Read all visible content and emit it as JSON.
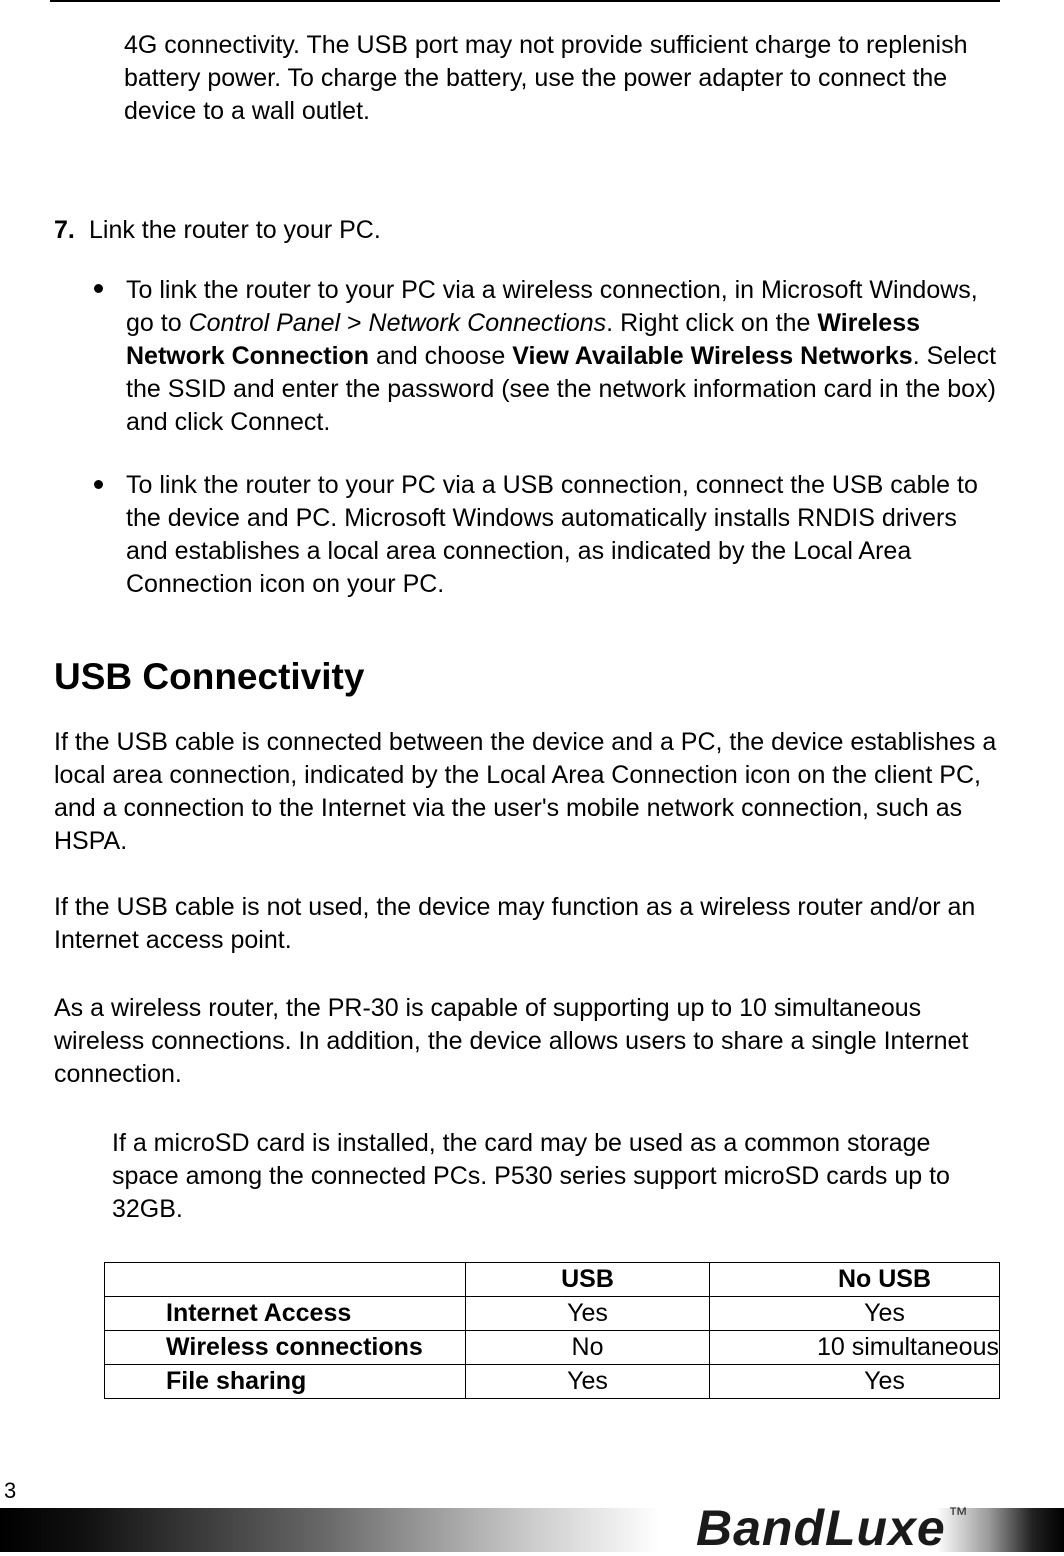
{
  "intro": "4G connectivity. The USB port may not provide sufficient charge to replenish battery power. To charge the battery, use the power adapter to connect the device to a wall outlet.",
  "step": {
    "number": "7.",
    "text": "Link the router to your PC."
  },
  "bullets": [
    [
      {
        "text": "To link the router to your PC via a wireless connection, in Microsoft Windows, go to ",
        "style": "normal"
      },
      {
        "text": "Control Panel",
        "style": "italic"
      },
      {
        "text": " > ",
        "style": "normal"
      },
      {
        "text": "Network Connections",
        "style": "italic"
      },
      {
        "text": ". Right click on the ",
        "style": "normal"
      },
      {
        "text": "Wireless Network Connection",
        "style": "bold"
      },
      {
        "text": " and choose ",
        "style": "normal"
      },
      {
        "text": "View Available Wireless Networks",
        "style": "bold"
      },
      {
        "text": ". Select the SSID and enter the password (see the network information card in the box) and click Connect.",
        "style": "normal"
      }
    ],
    [
      {
        "text": "To link the router to your PC via a USB connection, connect the USB cable to the device and PC. Microsoft Windows automatically installs RNDIS drivers and establishes a local area connection, as indicated by the Local Area Connection icon on your PC.",
        "style": "normal"
      }
    ]
  ],
  "heading": "USB Connectivity",
  "paragraphs": [
    "If the USB cable is connected between the device and a PC, the device establishes a local area connection, indicated by the Local Area Connection icon on the client PC, and a connection to the Internet via the user's mobile network connection, such as HSPA.",
    "If the USB cable is not used, the device may function as a wireless router and/or an Internet access point.",
    "As a wireless router, the PR-30 is capable of supporting up to 10 simultaneous wireless connections. In addition, the device allows users to share a single Internet connection."
  ],
  "note": "If a microSD card is installed, the card may be used as a common storage space among the connected PCs. P530 series support microSD cards up to 32GB.",
  "table": {
    "header": [
      "USB",
      "No USB"
    ],
    "rows": [
      [
        "Internet Access",
        "Yes",
        "Yes"
      ],
      [
        "Wireless connections",
        "No",
        "10 simultaneous"
      ],
      [
        "File sharing",
        "Yes",
        "Yes"
      ]
    ]
  },
  "footer": {
    "page_number": "3",
    "logo": "BandLuxe",
    "trademark": "™"
  }
}
